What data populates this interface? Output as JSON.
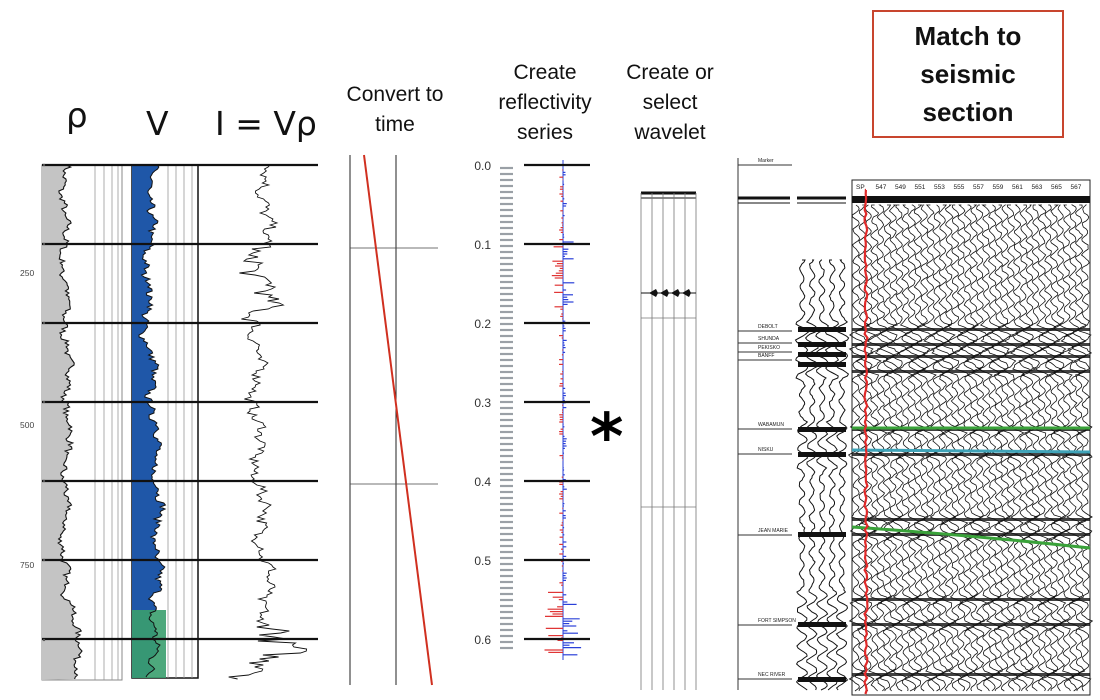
{
  "titles": {
    "density_symbol": "ρ",
    "velocity_symbol": "V",
    "impedance_formula": "I = Vρ",
    "convert_line1": "Convert to",
    "convert_line2": "time",
    "reflectivity_line1": "Create",
    "reflectivity_line2": "reflectivity",
    "reflectivity_line3": "series",
    "wavelet_line1": "Create or",
    "wavelet_line2": "select",
    "wavelet_line3": "wavelet",
    "match_line1": "Match to",
    "match_line2": "seismic",
    "match_line3": "section",
    "convolution_symbol": "*"
  },
  "depth_axis": {
    "ticks": [
      "250",
      "500",
      "750"
    ]
  },
  "time_axis": {
    "ticks": [
      "0.0",
      "0.1",
      "0.2",
      "0.3",
      "0.4",
      "0.5",
      "0.6"
    ]
  },
  "formation_tops": {
    "items": [
      "Marker",
      "DEBOLT",
      "SHUNDA",
      "PEKISKO",
      "BANFF",
      "WABAMUN",
      "NISKU",
      "JEAN MARIE",
      "FORT SIMPSON",
      "NEC RIVER"
    ]
  },
  "seismic_traces": {
    "labels": [
      "SP",
      "547",
      "549",
      "551",
      "553",
      "555",
      "557",
      "559",
      "561",
      "563",
      "565",
      "567"
    ]
  },
  "colors": {
    "velocity_fill": "#1f57a8",
    "velocity_fill_low": "#3a9e6e",
    "density_fill": "#c4c4c4",
    "time_depth_curve": "#d03020",
    "reflect_pos": "#e03535",
    "reflect_neg": "#2a40d8",
    "horizon_green": "#3aa23a",
    "horizon_teal": "#3fa3b8",
    "match_box_border": "#c8452e"
  }
}
